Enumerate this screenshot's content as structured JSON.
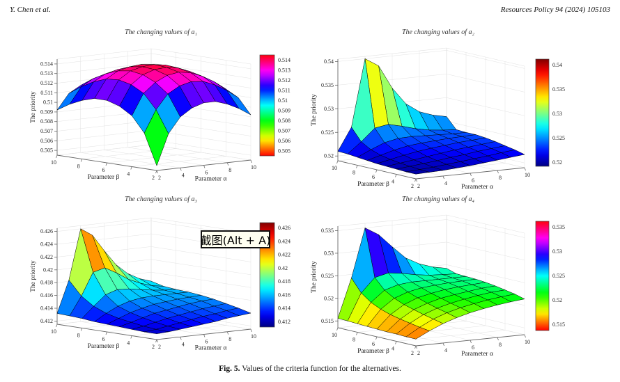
{
  "page": {
    "header_left": "Y. Chen et al.",
    "header_right": "Resources Policy 94 (2024) 105103",
    "caption_label": "Fig. 5.",
    "caption_text": "Values of the criteria function for the alternatives."
  },
  "overlay": {
    "screenshot_tooltip": "截图(Alt + A)"
  },
  "chart_data": [
    {
      "type": "surface",
      "title": "The changing values of a₁",
      "xlabel": "Parameter α",
      "ylabel": "Parameter β",
      "zlabel": "The priority",
      "colormap": "hsv",
      "x": [
        2,
        3,
        4,
        5,
        6,
        7,
        8,
        9,
        10
      ],
      "y": [
        2,
        3,
        4,
        5,
        6,
        7,
        8,
        9,
        10
      ],
      "xticks": [
        2,
        4,
        6,
        8,
        10
      ],
      "yticks": [
        10,
        8,
        6,
        4,
        2
      ],
      "ztick_labels": [
        "0.505",
        "0.506",
        "0.507",
        "0.508",
        "0.509",
        "0.51",
        "0.511",
        "0.512",
        "0.513",
        "0.514"
      ],
      "colorbar_labels": [
        "0.505",
        "0.506",
        "0.507",
        "0.508",
        "0.509",
        "0.51",
        "0.511",
        "0.512",
        "0.513",
        "0.514"
      ],
      "zlim": [
        0.5045,
        0.5145
      ],
      "clim": [
        0.5045,
        0.5145
      ],
      "z": [
        [
          0.505,
          0.5082,
          0.5098,
          0.5106,
          0.511,
          0.511,
          0.5106,
          0.51,
          0.5092
        ],
        [
          0.5082,
          0.5105,
          0.512,
          0.5127,
          0.513,
          0.5129,
          0.5124,
          0.5117,
          0.5108
        ],
        [
          0.5098,
          0.512,
          0.513,
          0.5136,
          0.5138,
          0.5136,
          0.5131,
          0.5124,
          0.5115
        ],
        [
          0.5106,
          0.5127,
          0.5136,
          0.514,
          0.5141,
          0.5139,
          0.5134,
          0.5127,
          0.5118
        ],
        [
          0.511,
          0.513,
          0.5138,
          0.5141,
          0.5142,
          0.514,
          0.5135,
          0.5128,
          0.5119
        ],
        [
          0.511,
          0.5129,
          0.5136,
          0.5139,
          0.514,
          0.5137,
          0.5132,
          0.5124,
          0.5115
        ],
        [
          0.5106,
          0.5124,
          0.5131,
          0.5134,
          0.5135,
          0.5132,
          0.5126,
          0.5118,
          0.5109
        ],
        [
          0.51,
          0.5117,
          0.5124,
          0.5127,
          0.5128,
          0.5124,
          0.5118,
          0.511,
          0.5101
        ],
        [
          0.5092,
          0.5108,
          0.5115,
          0.5118,
          0.5119,
          0.5115,
          0.5109,
          0.5101,
          0.5092
        ]
      ]
    },
    {
      "type": "surface",
      "title": "The changing values of a₂",
      "xlabel": "Parameter α",
      "ylabel": "Parameter β",
      "zlabel": "The priority",
      "colormap": "jet",
      "x": [
        2,
        3,
        4,
        5,
        6,
        7,
        8,
        9,
        10
      ],
      "y": [
        2,
        3,
        4,
        5,
        6,
        7,
        8,
        9,
        10
      ],
      "xticks": [
        2,
        4,
        6,
        8,
        10
      ],
      "yticks": [
        10,
        8,
        6,
        4,
        2
      ],
      "ztick_labels": [
        "0.52",
        "0.525",
        "0.53",
        "0.535",
        "0.54"
      ],
      "colorbar_labels": [
        "0.52",
        "0.525",
        "0.53",
        "0.535",
        "0.54"
      ],
      "zlim": [
        0.519,
        0.5405
      ],
      "clim": [
        0.5192,
        0.5412
      ],
      "z": [
        [
          0.52,
          0.5201,
          0.5202,
          0.5204,
          0.5206,
          0.5209,
          0.5212,
          0.5215,
          0.5218
        ],
        [
          0.52,
          0.5202,
          0.5204,
          0.5207,
          0.521,
          0.5213,
          0.5216,
          0.522,
          0.5223
        ],
        [
          0.5201,
          0.5204,
          0.5207,
          0.521,
          0.5214,
          0.5217,
          0.5221,
          0.5224,
          0.5227
        ],
        [
          0.5202,
          0.5206,
          0.521,
          0.5214,
          0.5218,
          0.5222,
          0.5225,
          0.5228,
          0.5231
        ],
        [
          0.5203,
          0.5209,
          0.5215,
          0.522,
          0.5224,
          0.5227,
          0.523,
          0.5232,
          0.5234
        ],
        [
          0.5205,
          0.5213,
          0.5221,
          0.5227,
          0.523,
          0.5232,
          0.5234,
          0.5235,
          0.5236
        ],
        [
          0.5207,
          0.522,
          0.5232,
          0.5238,
          0.5239,
          0.5238,
          0.5237,
          0.5236,
          0.5236
        ],
        [
          0.5209,
          0.5232,
          0.5258,
          0.5263,
          0.5256,
          0.5248,
          0.5242,
          0.5239,
          0.5237
        ],
        [
          0.521,
          0.5258,
          0.54,
          0.5382,
          0.5332,
          0.5296,
          0.5276,
          0.5266,
          0.526
        ]
      ]
    },
    {
      "type": "surface",
      "title": "The changing values of a₃",
      "xlabel": "Parameter α",
      "ylabel": "Parameter β",
      "zlabel": "The priority",
      "colormap": "jet",
      "x": [
        2,
        3,
        4,
        5,
        6,
        7,
        8,
        9,
        10
      ],
      "y": [
        2,
        3,
        4,
        5,
        6,
        7,
        8,
        9,
        10
      ],
      "xticks": [
        2,
        4,
        6,
        8,
        10
      ],
      "yticks": [
        10,
        8,
        6,
        4,
        2
      ],
      "ztick_labels": [
        "0.412",
        "0.414",
        "0.416",
        "0.418",
        "0.42",
        "0.422",
        "0.424",
        "0.426"
      ],
      "colorbar_labels": [
        "0.412",
        "0.414",
        "0.416",
        "0.418",
        "0.42",
        "0.422",
        "0.424",
        "0.426"
      ],
      "zlim": [
        0.4115,
        0.4265
      ],
      "clim": [
        0.4112,
        0.4268
      ],
      "z": [
        [
          0.4124,
          0.4125,
          0.4127,
          0.4129,
          0.4131,
          0.4133,
          0.4136,
          0.4138,
          0.414
        ],
        [
          0.4124,
          0.4126,
          0.4129,
          0.4132,
          0.4135,
          0.4138,
          0.414,
          0.4143,
          0.4145
        ],
        [
          0.4125,
          0.4128,
          0.4132,
          0.4136,
          0.4139,
          0.4142,
          0.4145,
          0.4147,
          0.4149
        ],
        [
          0.4126,
          0.4131,
          0.4136,
          0.4141,
          0.4144,
          0.4147,
          0.415,
          0.4152,
          0.4153
        ],
        [
          0.4127,
          0.4134,
          0.4141,
          0.4146,
          0.415,
          0.4152,
          0.4154,
          0.4155,
          0.4156
        ],
        [
          0.4128,
          0.4139,
          0.4148,
          0.4154,
          0.4157,
          0.4158,
          0.4158,
          0.4158,
          0.4158
        ],
        [
          0.413,
          0.4147,
          0.4163,
          0.4169,
          0.4168,
          0.4165,
          0.4162,
          0.416,
          0.4159
        ],
        [
          0.4131,
          0.416,
          0.4195,
          0.42,
          0.419,
          0.4178,
          0.417,
          0.4164,
          0.4161
        ],
        [
          0.4132,
          0.4182,
          0.426,
          0.4248,
          0.4222,
          0.4198,
          0.4182,
          0.4172,
          0.4166
        ]
      ]
    },
    {
      "type": "surface",
      "title": "The changing values of a₄",
      "xlabel": "Parameter α",
      "ylabel": "Parameter β",
      "zlabel": "The priority",
      "colormap": "hsv",
      "x": [
        2,
        3,
        4,
        5,
        6,
        7,
        8,
        9,
        10
      ],
      "y": [
        2,
        3,
        4,
        5,
        6,
        7,
        8,
        9,
        10
      ],
      "xticks": [
        2,
        4,
        6,
        8,
        10
      ],
      "yticks": [
        10,
        8,
        6,
        4,
        2
      ],
      "ztick_labels": [
        "0.515",
        "0.52",
        "0.525",
        "0.53",
        "0.535"
      ],
      "colorbar_labels": [
        "0.515",
        "0.52",
        "0.525",
        "0.53",
        "0.535"
      ],
      "zlim": [
        0.5135,
        0.536
      ],
      "clim": [
        0.5138,
        0.5362
      ],
      "z": [
        [
          0.515,
          0.5165,
          0.5178,
          0.5188,
          0.5196,
          0.5202,
          0.5207,
          0.5211,
          0.5214
        ],
        [
          0.515,
          0.5168,
          0.5183,
          0.5194,
          0.5202,
          0.5208,
          0.5213,
          0.5217,
          0.522
        ],
        [
          0.5151,
          0.5172,
          0.5188,
          0.5199,
          0.5207,
          0.5213,
          0.5218,
          0.5222,
          0.5224
        ],
        [
          0.5151,
          0.5176,
          0.5194,
          0.5205,
          0.5213,
          0.5218,
          0.5222,
          0.5226,
          0.5228
        ],
        [
          0.5152,
          0.5181,
          0.52,
          0.5212,
          0.5219,
          0.5224,
          0.5227,
          0.5229,
          0.5231
        ],
        [
          0.5153,
          0.5188,
          0.5209,
          0.522,
          0.5226,
          0.5229,
          0.5231,
          0.5232,
          0.5233
        ],
        [
          0.5154,
          0.5198,
          0.5222,
          0.5231,
          0.5234,
          0.5234,
          0.5234,
          0.5234,
          0.5234
        ],
        [
          0.5155,
          0.5214,
          0.5245,
          0.5252,
          0.5248,
          0.5242,
          0.5238,
          0.5236,
          0.5235
        ],
        [
          0.5156,
          0.5242,
          0.535,
          0.5332,
          0.5302,
          0.5274,
          0.5258,
          0.5248,
          0.5242
        ]
      ]
    }
  ]
}
